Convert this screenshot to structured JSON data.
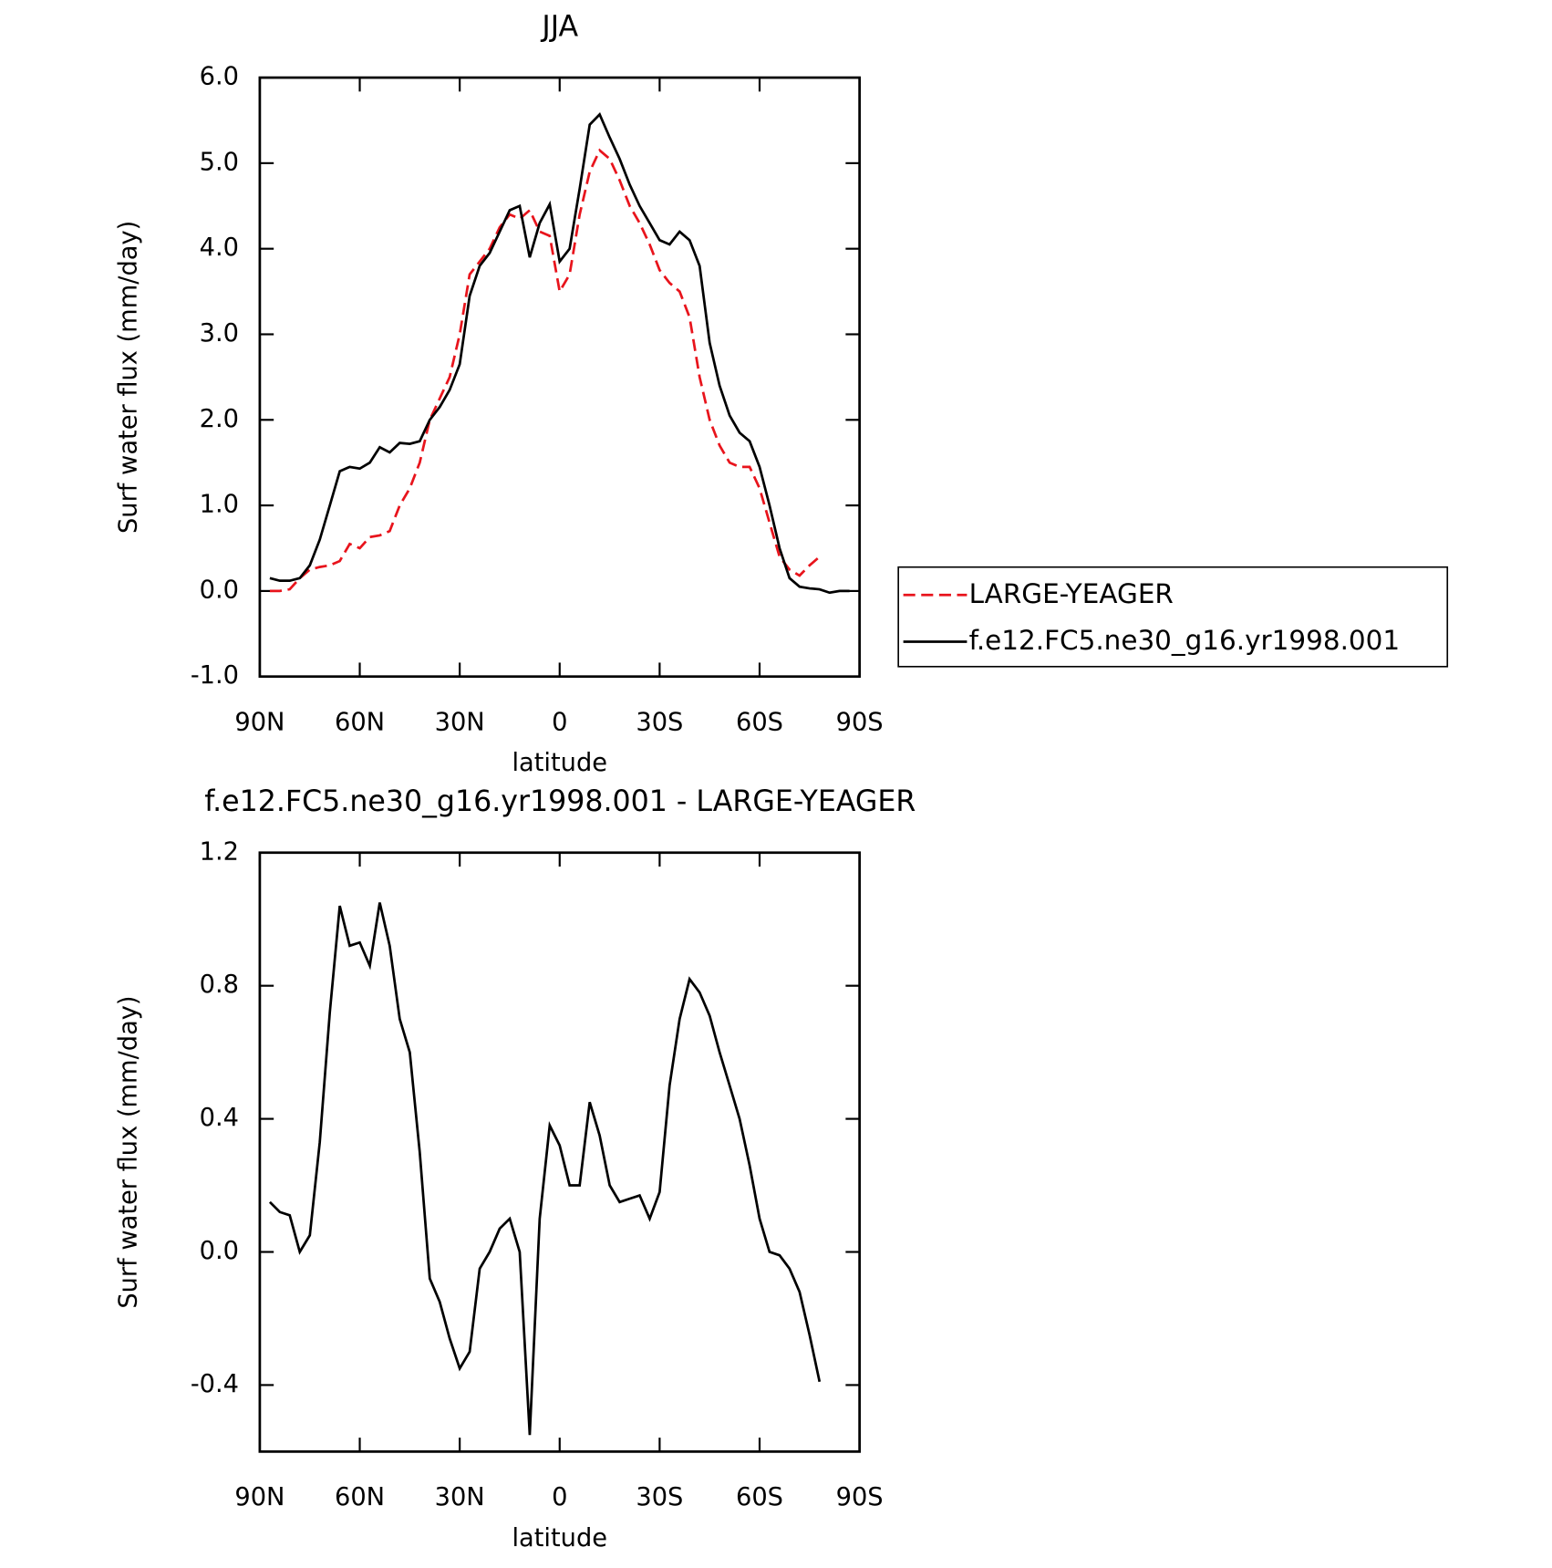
{
  "chart_data": [
    {
      "type": "line",
      "title": "JJA",
      "ylabel": "Surf water flux (mm/day)",
      "xlabel": "latitude",
      "x": [
        87,
        84,
        81,
        78,
        75,
        72,
        69,
        66,
        63,
        60,
        57,
        54,
        51,
        48,
        45,
        42,
        39,
        36,
        33,
        30,
        27,
        24,
        21,
        18,
        15,
        12,
        9,
        6,
        3,
        0,
        -3,
        -6,
        -9,
        -12,
        -15,
        -18,
        -21,
        -24,
        -27,
        -30,
        -33,
        -36,
        -39,
        -42,
        -45,
        -48,
        -51,
        -54,
        -57,
        -60,
        -63,
        -66,
        -69,
        -72,
        -75,
        -78,
        -81,
        -84,
        -87
      ],
      "xlim": [
        90,
        -90
      ],
      "xticks": [
        {
          "value": 90,
          "label": "90N"
        },
        {
          "value": 60,
          "label": "60N"
        },
        {
          "value": 30,
          "label": "30N"
        },
        0,
        {
          "value": -30,
          "label": "30S"
        },
        {
          "value": -60,
          "label": "60S"
        },
        {
          "value": -90,
          "label": "90S"
        }
      ],
      "ylim": [
        -1,
        6
      ],
      "yticks": [
        {
          "value": -1,
          "label": "-1.0"
        },
        {
          "value": 0,
          "label": "0.0"
        },
        {
          "value": 1,
          "label": "1.0"
        },
        {
          "value": 2,
          "label": "2.0"
        },
        {
          "value": 3,
          "label": "3.0"
        },
        {
          "value": 4,
          "label": "4.0"
        },
        {
          "value": 5,
          "label": "5.0"
        },
        {
          "value": 6,
          "label": "6.0"
        }
      ],
      "legend": "right",
      "series": [
        {
          "name": "LARGE-YEAGER",
          "color": "#e8141c",
          "line_style": "dashed",
          "values": [
            0,
            0,
            0.02,
            0.15,
            0.25,
            0.28,
            0.3,
            0.35,
            0.55,
            0.5,
            0.63,
            0.65,
            0.7,
            1.0,
            1.2,
            1.5,
            2.0,
            2.25,
            2.5,
            3.0,
            3.7,
            3.85,
            4.0,
            4.25,
            4.4,
            4.35,
            4.45,
            4.2,
            4.15,
            3.5,
            3.7,
            4.4,
            4.9,
            5.15,
            5.05,
            4.8,
            4.5,
            4.3,
            4.05,
            3.75,
            3.6,
            3.5,
            3.2,
            2.5,
            2.0,
            1.7,
            1.5,
            1.45,
            1.45,
            1.2,
            0.8,
            0.4,
            0.25,
            0.18,
            0.3,
            0.4,
            null,
            null,
            null
          ]
        },
        {
          "name": "f.e12.FC5.ne30_g16.yr1998.001",
          "color": "#000000",
          "line_style": "solid",
          "values": [
            0.15,
            0.12,
            0.12,
            0.15,
            0.3,
            0.6,
            1.0,
            1.4,
            1.45,
            1.43,
            1.5,
            1.68,
            1.62,
            1.73,
            1.72,
            1.75,
            2.0,
            2.15,
            2.35,
            2.65,
            3.45,
            3.8,
            3.95,
            4.2,
            4.45,
            4.5,
            3.9,
            4.3,
            4.52,
            3.85,
            4.0,
            4.7,
            5.45,
            5.57,
            5.3,
            5.05,
            4.75,
            4.5,
            4.3,
            4.1,
            4.05,
            4.2,
            4.1,
            3.8,
            2.9,
            2.4,
            2.05,
            1.85,
            1.75,
            1.45,
            1.0,
            0.5,
            0.15,
            0.05,
            0.03,
            0.02,
            -0.02,
            0.0,
            0.0
          ]
        }
      ]
    },
    {
      "type": "line",
      "title": "f.e12.FC5.ne30_g16.yr1998.001 - LARGE-YEAGER",
      "ylabel": "Surf water flux (mm/day)",
      "xlabel": "latitude",
      "x": [
        87,
        84,
        81,
        78,
        75,
        72,
        69,
        66,
        63,
        60,
        57,
        54,
        51,
        48,
        45,
        42,
        39,
        36,
        33,
        30,
        27,
        24,
        21,
        18,
        15,
        12,
        9,
        6,
        3,
        0,
        -3,
        -6,
        -9,
        -12,
        -15,
        -18,
        -21,
        -24,
        -27,
        -30,
        -33,
        -36,
        -39,
        -42,
        -45,
        -48,
        -51,
        -54,
        -57,
        -60,
        -63,
        -66,
        -69,
        -72,
        -75,
        -78
      ],
      "xlim": [
        90,
        -90
      ],
      "xticks": [
        {
          "value": 90,
          "label": "90N"
        },
        {
          "value": 60,
          "label": "60N"
        },
        {
          "value": 30,
          "label": "30N"
        },
        0,
        {
          "value": -30,
          "label": "30S"
        },
        {
          "value": -60,
          "label": "60S"
        },
        {
          "value": -90,
          "label": "90S"
        }
      ],
      "ylim": [
        -0.6,
        1.2
      ],
      "yticks": [
        -0.4,
        {
          "value": 0,
          "label": "0.0"
        },
        0.4,
        0.8,
        1.2
      ],
      "series": [
        {
          "color": "#000000",
          "line_style": "solid",
          "values": [
            0.15,
            0.12,
            0.11,
            0.0,
            0.05,
            0.33,
            0.72,
            1.04,
            0.92,
            0.93,
            0.86,
            1.05,
            0.92,
            0.7,
            0.6,
            0.3,
            -0.08,
            -0.15,
            -0.26,
            -0.35,
            -0.3,
            -0.05,
            0.0,
            0.07,
            0.1,
            0.0,
            -0.55,
            0.1,
            0.38,
            0.32,
            0.2,
            0.2,
            0.45,
            0.35,
            0.2,
            0.15,
            0.16,
            0.17,
            0.1,
            0.18,
            0.5,
            0.7,
            0.82,
            0.78,
            0.71,
            0.6,
            0.5,
            0.4,
            0.26,
            0.1,
            0.0,
            -0.01,
            -0.05,
            -0.12,
            -0.25,
            -0.39
          ]
        }
      ]
    }
  ]
}
